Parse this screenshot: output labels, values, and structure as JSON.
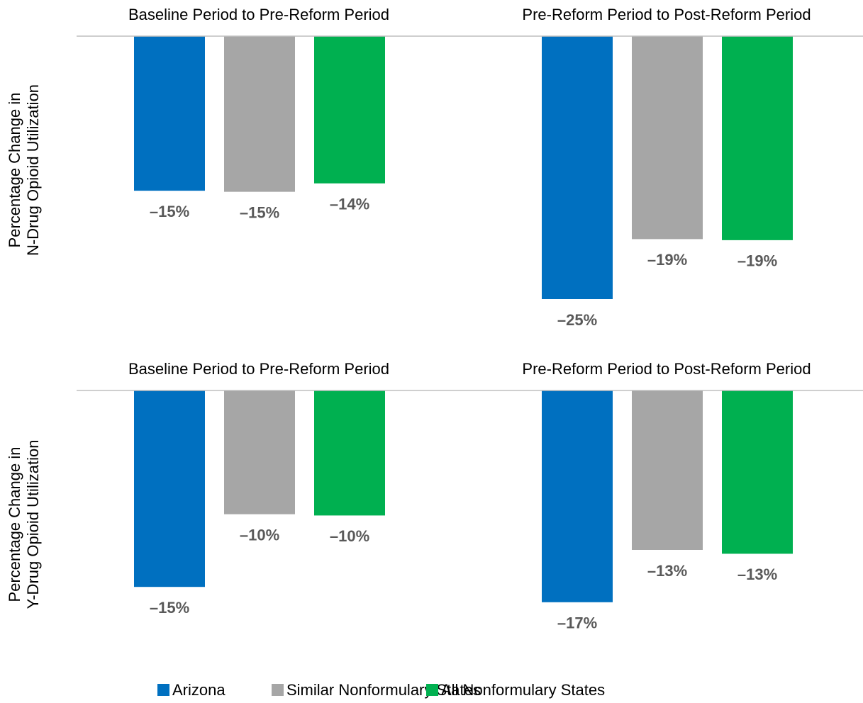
{
  "legend": [
    {
      "name": "Arizona",
      "color": "#0070c0"
    },
    {
      "name": "Similar Nonformulary States",
      "color": "#a6a6a6"
    },
    {
      "name": "All Nonformulary States",
      "color": "#00b050"
    }
  ],
  "chart_data": [
    {
      "type": "bar",
      "ylabel": [
        "Percentage Change in",
        "N-Drug Opioid Utilization"
      ],
      "categories": [
        "Baseline Period to Pre-Reform Period",
        "Pre-Reform Period to Post-Reform Period"
      ],
      "ylim": [
        -25,
        0
      ],
      "series": [
        {
          "values": [
            -14.7,
            -25.0
          ],
          "value_labels": [
            "–15%",
            "–25%"
          ]
        },
        {
          "values": [
            -14.8,
            -19.3
          ],
          "value_labels": [
            "–15%",
            "–19%"
          ]
        },
        {
          "values": [
            -14.0,
            -19.4
          ],
          "value_labels": [
            "–14%",
            "–19%"
          ]
        }
      ]
    },
    {
      "type": "bar",
      "ylabel": [
        "Percentage Change in",
        "Y-Drug Opioid Utilization"
      ],
      "categories": [
        "Baseline Period to Pre-Reform Period",
        "Pre-Reform Period to Post-Reform Period"
      ],
      "ylim": [
        -17.5,
        0
      ],
      "series": [
        {
          "values": [
            -15.4,
            -16.6
          ],
          "value_labels": [
            "–15%",
            "–17%"
          ]
        },
        {
          "values": [
            -9.7,
            -12.5
          ],
          "value_labels": [
            "–10%",
            "–13%"
          ]
        },
        {
          "values": [
            -9.8,
            -12.8
          ],
          "value_labels": [
            "–10%",
            "–13%"
          ]
        }
      ]
    }
  ]
}
